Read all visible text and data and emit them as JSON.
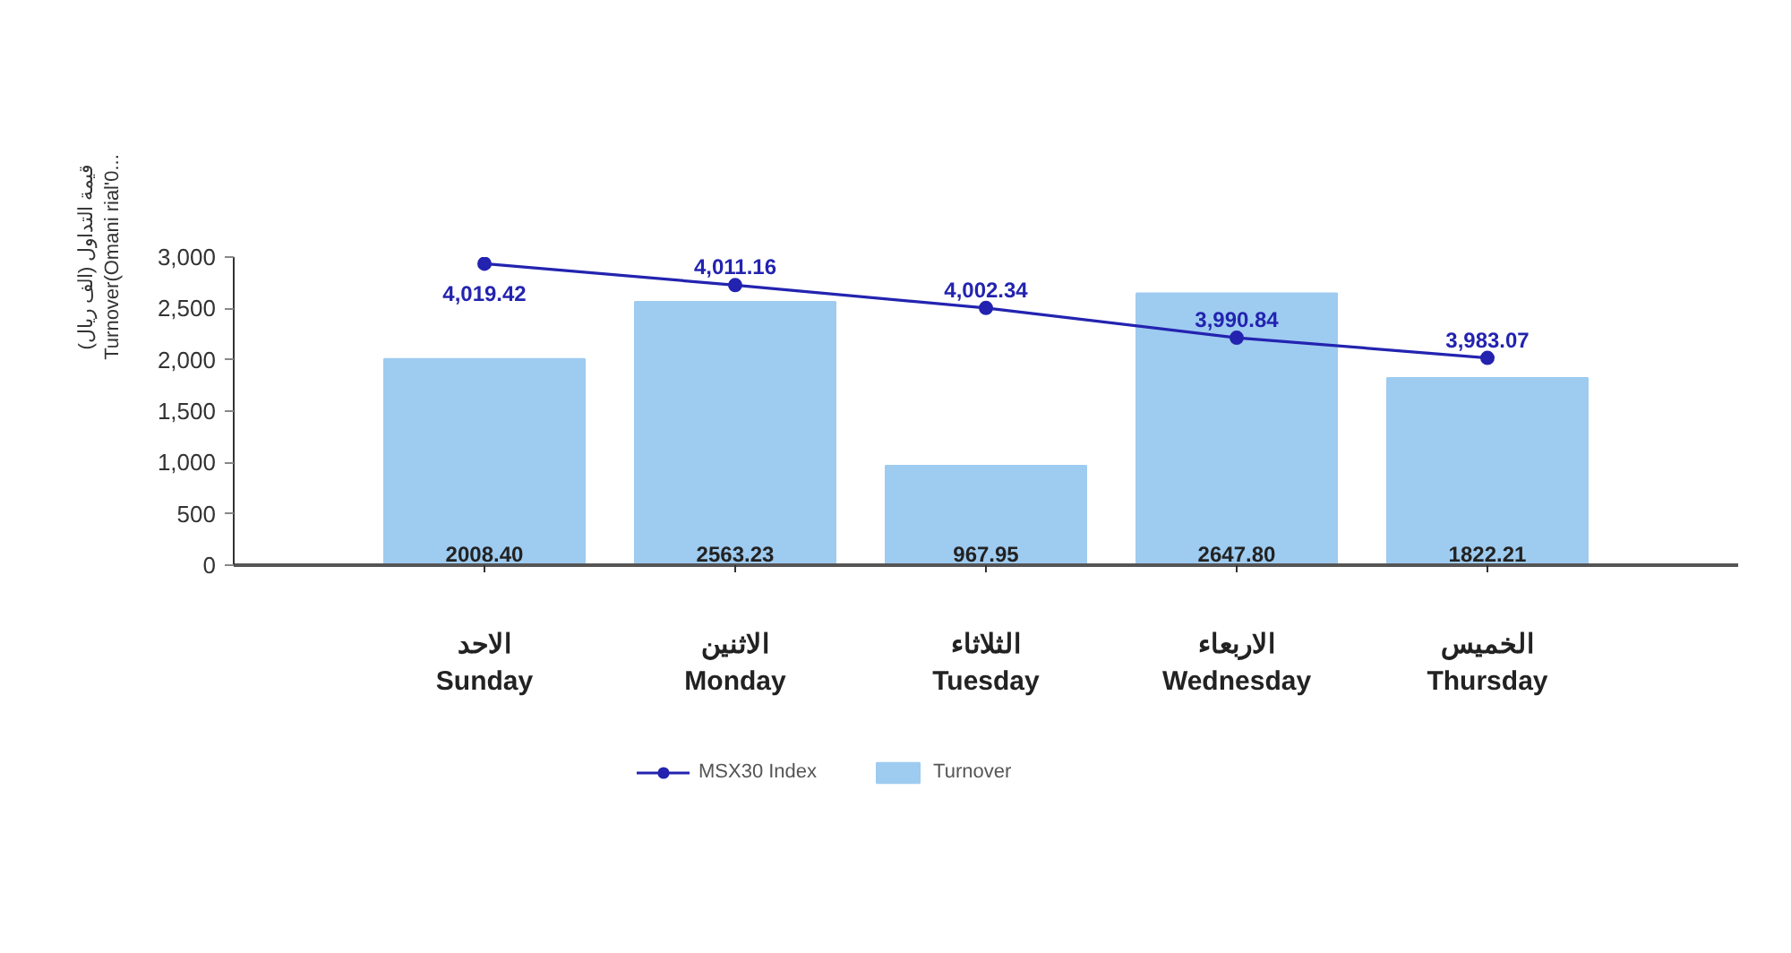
{
  "chart_data": {
    "type": "bar",
    "categories": [
      "الاحد\nSunday",
      "الاثنين\nMonday",
      "الثلاثاء\nTuesday",
      "الاربعاء\nWednesday",
      "الخميس\nThursday"
    ],
    "ylabel": "قيمة التداول (الف ريال)\nTurnover(Omani rial'0...",
    "ylim": [
      0,
      3000
    ],
    "yticks": [
      0,
      500,
      {
        "value": 1000,
        "label": "1,000"
      },
      {
        "value": 1500,
        "label": "1,500"
      },
      {
        "value": 2000,
        "label": "2,000"
      },
      {
        "value": 2500,
        "label": "2,500"
      },
      {
        "value": 3000,
        "label": "3,000"
      }
    ],
    "y2lim": [
      3903,
      4022
    ],
    "legend": "bottom",
    "series": [
      {
        "name": "MSX30 Index",
        "type": "line",
        "axis": "y2",
        "color": "#2323b0",
        "marker": "circle",
        "line_style": "solid",
        "values": [
          4019.42,
          4011.16,
          4002.34,
          3990.84,
          3983.07
        ],
        "value_labels": [
          "4,019.42",
          "4,011.16",
          "4,002.34",
          "3,990.84",
          "3,983.07"
        ]
      },
      {
        "name": "Turnover",
        "color": "#9ecbf0",
        "values": [
          2008.4,
          2563.23,
          967.95,
          2647.8,
          1822.21
        ],
        "value_labels": [
          "2008.40",
          "2563.23",
          "967.95",
          "2647.80",
          "1822.21"
        ]
      }
    ]
  }
}
